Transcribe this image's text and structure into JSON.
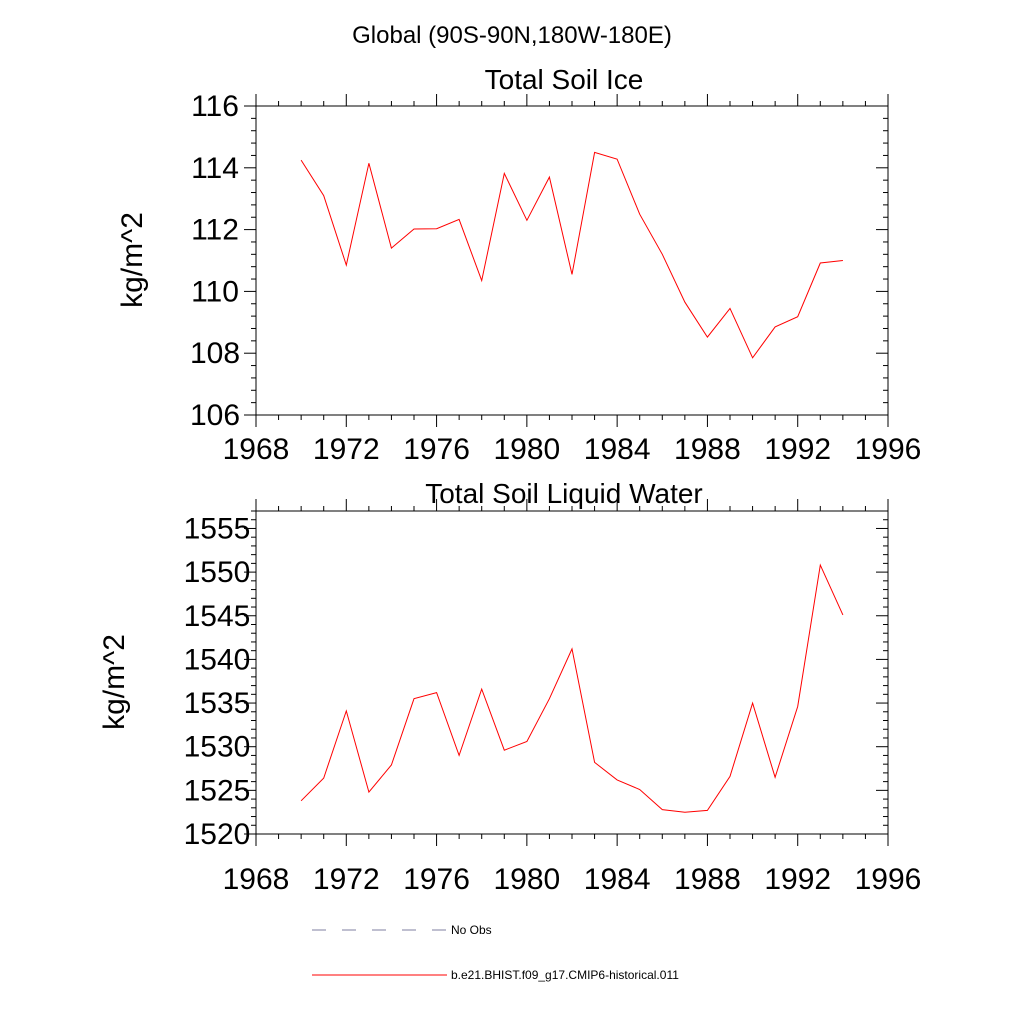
{
  "figure": {
    "suptitle": "Global (90S-90N,180W-180E)"
  },
  "chart_data": [
    {
      "type": "line",
      "title": "Total Soil Ice",
      "ylabel": "kg/m^2",
      "xlabel": "",
      "xlim": [
        1968,
        1996
      ],
      "ylim": [
        106,
        116
      ],
      "x_ticks": [
        1968,
        1972,
        1976,
        1980,
        1984,
        1988,
        1992,
        1996
      ],
      "y_ticks": [
        106,
        108,
        110,
        112,
        114,
        116
      ],
      "grid": false,
      "series": [
        {
          "name": "b.e21.BHIST.f09_g17.CMIP6-historical.011",
          "color": "#ff0000",
          "x": [
            1970,
            1971,
            1972,
            1973,
            1974,
            1975,
            1976,
            1977,
            1978,
            1979,
            1980,
            1981,
            1982,
            1983,
            1984,
            1985,
            1986,
            1987,
            1988,
            1989,
            1990,
            1991,
            1992,
            1993,
            1994
          ],
          "y": [
            114.25,
            113.1,
            110.85,
            114.15,
            111.4,
            112.02,
            112.03,
            112.33,
            110.35,
            113.82,
            112.3,
            113.7,
            110.55,
            114.5,
            114.28,
            112.5,
            111.2,
            109.65,
            108.52,
            109.45,
            107.85,
            108.85,
            109.18,
            110.92,
            111.0
          ]
        }
      ]
    },
    {
      "type": "line",
      "title": "Total Soil Liquid Water",
      "ylabel": "kg/m^2",
      "xlabel": "",
      "xlim": [
        1968,
        1996
      ],
      "ylim": [
        1520,
        1557
      ],
      "x_ticks": [
        1968,
        1972,
        1976,
        1980,
        1984,
        1988,
        1992,
        1996
      ],
      "y_ticks": [
        1520,
        1525,
        1530,
        1535,
        1540,
        1545,
        1550,
        1555
      ],
      "grid": false,
      "series": [
        {
          "name": "b.e21.BHIST.f09_g17.CMIP6-historical.011",
          "color": "#ff0000",
          "x": [
            1970,
            1971,
            1972,
            1973,
            1974,
            1975,
            1976,
            1977,
            1978,
            1979,
            1980,
            1981,
            1982,
            1983,
            1984,
            1985,
            1986,
            1987,
            1988,
            1989,
            1990,
            1991,
            1992,
            1993,
            1994
          ],
          "y": [
            1523.8,
            1526.4,
            1534.1,
            1524.8,
            1527.9,
            1535.5,
            1536.2,
            1529.0,
            1536.6,
            1529.6,
            1530.6,
            1535.5,
            1541.2,
            1528.2,
            1526.2,
            1525.1,
            1522.8,
            1522.5,
            1522.7,
            1526.6,
            1535.0,
            1526.5,
            1534.6,
            1550.8,
            1545.1
          ]
        }
      ]
    }
  ],
  "legend": {
    "placement": "bottom",
    "entries": [
      {
        "label": "No Obs",
        "color": "#7f7fa0",
        "style": "dashed"
      },
      {
        "label": "b.e21.BHIST.f09_g17.CMIP6-historical.011",
        "color": "#ff0000",
        "style": "solid"
      }
    ]
  }
}
